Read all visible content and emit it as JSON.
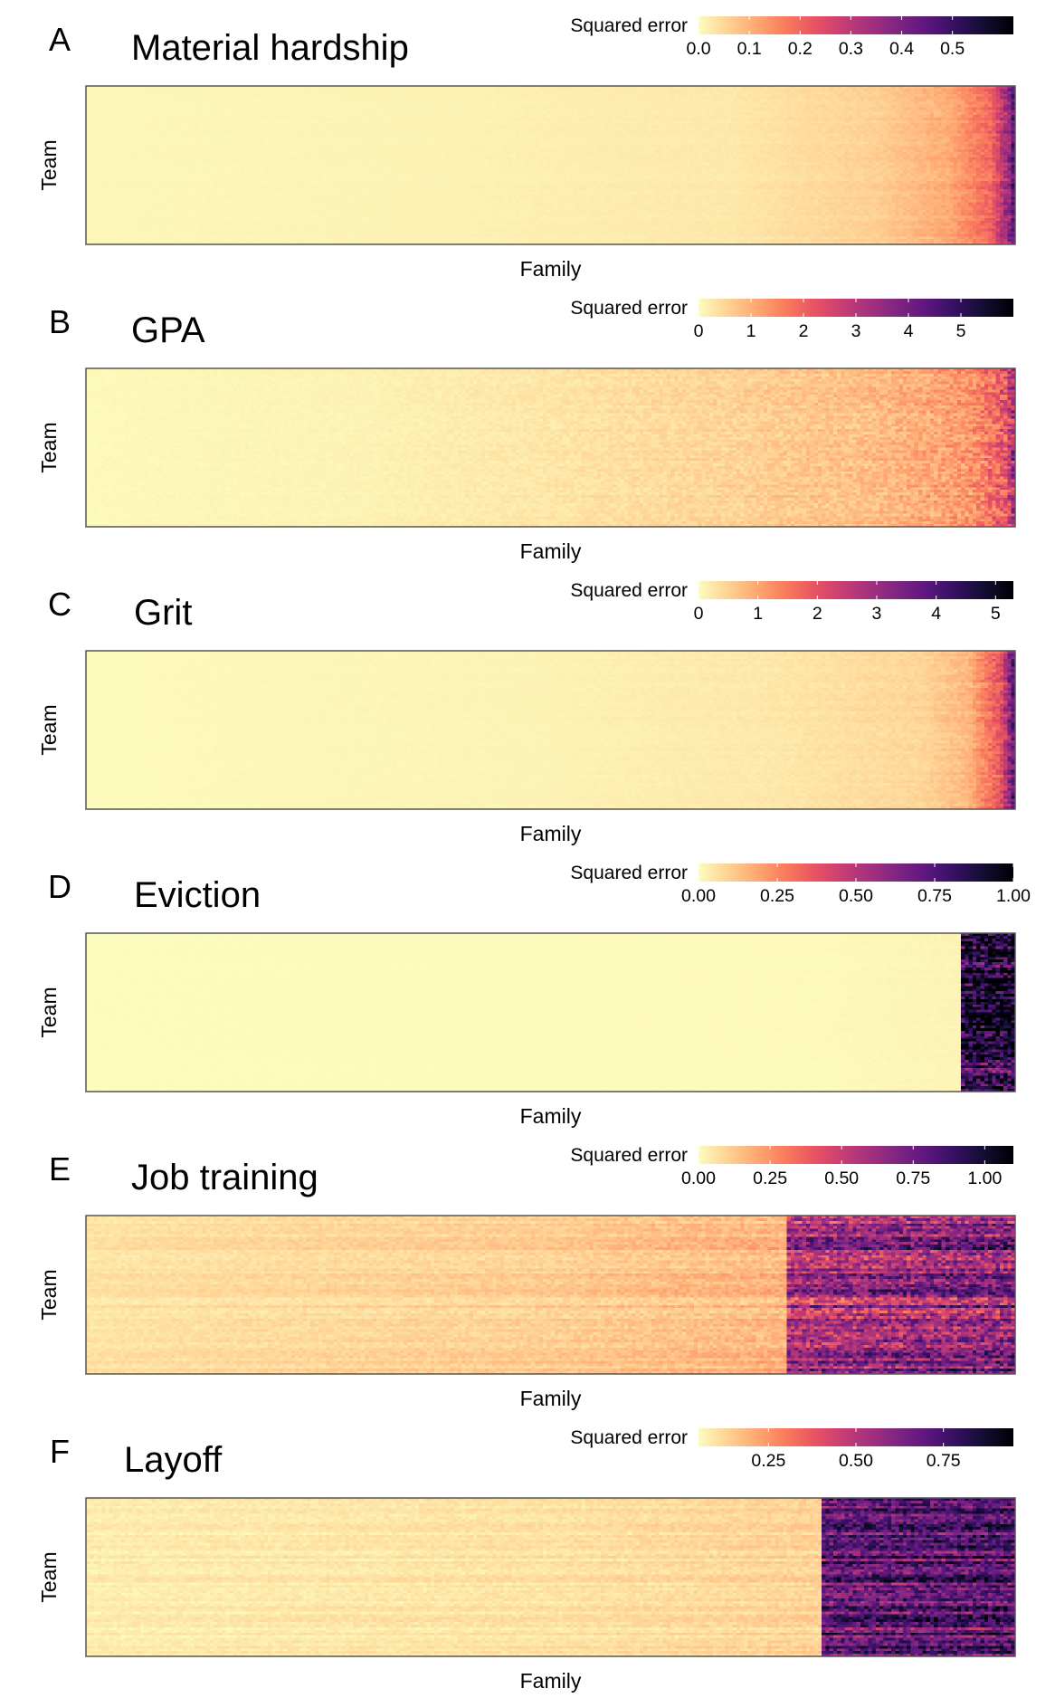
{
  "colormap": [
    "#fcfdbf",
    "#fed395",
    "#fea973",
    "#fa7d5e",
    "#e95462",
    "#c83e73",
    "#a3307e",
    "#7e2482",
    "#5a167e",
    "#33105f",
    "#120d31",
    "#000004"
  ],
  "legend_title": "Squared error",
  "x_label": "Family",
  "y_label": "Team",
  "chart_data": [
    {
      "panel": "A",
      "type": "heatmap",
      "title": "Material hardship",
      "xlabel": "Family",
      "ylabel": "Team",
      "legend_title": "Squared error",
      "color_range": [
        0,
        0.62
      ],
      "legend_ticks": [
        {
          "value": 0,
          "label": "0.0"
        },
        {
          "value": 0.1,
          "label": "0.1"
        },
        {
          "value": 0.2,
          "label": "0.2"
        },
        {
          "value": 0.3,
          "label": "0.3"
        },
        {
          "value": 0.4,
          "label": "0.4"
        },
        {
          "value": 0.5,
          "label": "0.5"
        }
      ],
      "profile": [
        [
          0,
          0.008
        ],
        [
          0.4,
          0.015
        ],
        [
          0.7,
          0.028
        ],
        [
          0.85,
          0.06
        ],
        [
          0.93,
          0.11
        ],
        [
          0.975,
          0.2
        ],
        [
          0.995,
          0.38
        ],
        [
          1.0,
          0.5
        ]
      ],
      "noise": 0.15,
      "row_noise": 0.1
    },
    {
      "panel": "B",
      "type": "heatmap",
      "title": "GPA",
      "xlabel": "Family",
      "ylabel": "Team",
      "legend_title": "Squared error",
      "color_range": [
        0,
        6
      ],
      "legend_ticks": [
        {
          "value": 0,
          "label": "0"
        },
        {
          "value": 1,
          "label": "1"
        },
        {
          "value": 2,
          "label": "2"
        },
        {
          "value": 3,
          "label": "3"
        },
        {
          "value": 4,
          "label": "4"
        },
        {
          "value": 5,
          "label": "5"
        }
      ],
      "profile": [
        [
          0,
          0.05
        ],
        [
          0.3,
          0.14
        ],
        [
          0.5,
          0.3
        ],
        [
          0.7,
          0.55
        ],
        [
          0.85,
          0.85
        ],
        [
          0.95,
          1.3
        ],
        [
          0.99,
          2.2
        ],
        [
          1.0,
          3.5
        ]
      ],
      "noise": 0.35,
      "row_noise": 0.12
    },
    {
      "panel": "C",
      "type": "heatmap",
      "title": "Grit",
      "xlabel": "Family",
      "ylabel": "Team",
      "legend_title": "Squared error",
      "color_range": [
        0,
        5.3
      ],
      "legend_ticks": [
        {
          "value": 0,
          "label": "0"
        },
        {
          "value": 1,
          "label": "1"
        },
        {
          "value": 2,
          "label": "2"
        },
        {
          "value": 3,
          "label": "3"
        },
        {
          "value": 4,
          "label": "4"
        },
        {
          "value": 5,
          "label": "5"
        }
      ],
      "profile": [
        [
          0,
          0.03
        ],
        [
          0.5,
          0.12
        ],
        [
          0.75,
          0.25
        ],
        [
          0.9,
          0.45
        ],
        [
          0.95,
          0.8
        ],
        [
          0.985,
          2.0
        ],
        [
          1.0,
          4.0
        ]
      ],
      "noise": 0.2,
      "row_noise": 0.1
    },
    {
      "panel": "D",
      "type": "heatmap",
      "title": "Eviction",
      "xlabel": "Family",
      "ylabel": "Team",
      "legend_title": "Squared error",
      "color_range": [
        0,
        1.0
      ],
      "legend_ticks": [
        {
          "value": 0,
          "label": "0.00"
        },
        {
          "value": 0.25,
          "label": "0.25"
        },
        {
          "value": 0.5,
          "label": "0.50"
        },
        {
          "value": 0.75,
          "label": "0.75"
        },
        {
          "value": 1.0,
          "label": "1.00"
        }
      ],
      "profile": [
        [
          0,
          0.003
        ],
        [
          0.8,
          0.008
        ],
        [
          0.935,
          0.02
        ],
        [
          0.9399,
          0.02
        ],
        [
          0.94,
          0.87
        ],
        [
          1.0,
          0.9
        ]
      ],
      "noise": 0.25,
      "row_noise": 0.2
    },
    {
      "panel": "E",
      "type": "heatmap",
      "title": "Job training",
      "xlabel": "Family",
      "ylabel": "Team",
      "legend_title": "Squared error",
      "color_range": [
        0,
        1.1
      ],
      "legend_ticks": [
        {
          "value": 0,
          "label": "0.00"
        },
        {
          "value": 0.25,
          "label": "0.25"
        },
        {
          "value": 0.5,
          "label": "0.50"
        },
        {
          "value": 0.75,
          "label": "0.75"
        },
        {
          "value": 1.0,
          "label": "1.00"
        }
      ],
      "profile": [
        [
          0,
          0.06
        ],
        [
          0.5,
          0.11
        ],
        [
          0.75,
          0.17
        ],
        [
          0.7549,
          0.17
        ],
        [
          0.755,
          0.58
        ],
        [
          1.0,
          0.68
        ]
      ],
      "noise": 0.3,
      "row_noise": 0.3
    },
    {
      "panel": "F",
      "type": "heatmap",
      "title": "Layoff",
      "xlabel": "Family",
      "ylabel": "Team",
      "legend_title": "Squared error",
      "color_range": [
        0.05,
        0.95
      ],
      "legend_ticks": [
        {
          "value": 0.25,
          "label": "0.25"
        },
        {
          "value": 0.5,
          "label": "0.50"
        },
        {
          "value": 0.75,
          "label": "0.75"
        }
      ],
      "profile": [
        [
          0,
          0.08
        ],
        [
          0.5,
          0.1
        ],
        [
          0.78,
          0.13
        ],
        [
          0.7899,
          0.13
        ],
        [
          0.79,
          0.68
        ],
        [
          1.0,
          0.72
        ]
      ],
      "noise": 0.2,
      "row_noise": 0.2
    }
  ]
}
